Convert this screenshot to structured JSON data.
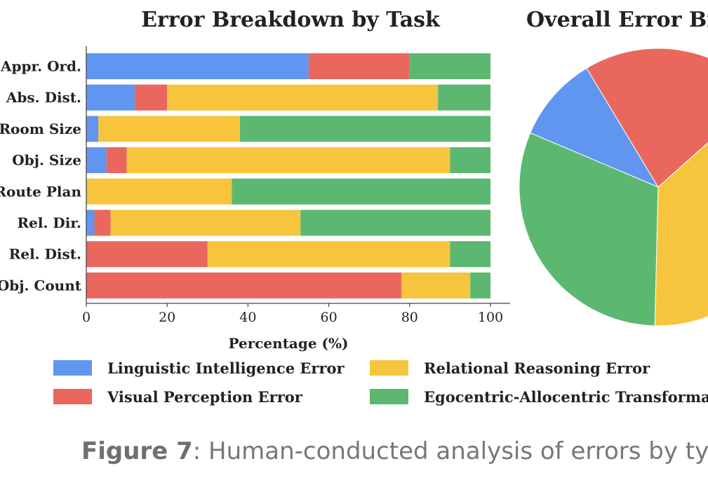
{
  "colors": {
    "linguistic": "#6196f0",
    "visual": "#e9675c",
    "relational": "#f6c53d",
    "egocentric": "#5cb871"
  },
  "chart_data": [
    {
      "type": "bar",
      "orientation": "horizontal-stacked",
      "title": "Error Breakdown by Task",
      "xlabel": "Percentage (%)",
      "xlim": [
        0,
        100
      ],
      "xticks": [
        "0",
        "20",
        "40",
        "60",
        "80",
        "100"
      ],
      "categories": [
        "Appr. Ord.",
        "Abs. Dist.",
        "Room Size",
        "Obj. Size",
        "Route Plan",
        "Rel. Dir.",
        "Rel. Dist.",
        "Obj. Count"
      ],
      "series": [
        {
          "name": "Linguistic Intelligence Error",
          "color_key": "linguistic",
          "values": [
            55,
            12,
            3,
            5,
            0,
            2,
            0,
            0
          ]
        },
        {
          "name": "Visual Perception Error",
          "color_key": "visual",
          "values": [
            25,
            8,
            0,
            5,
            0,
            4,
            30,
            78
          ]
        },
        {
          "name": "Relational Reasoning Error",
          "color_key": "relational",
          "values": [
            0,
            67,
            35,
            80,
            36,
            47,
            60,
            17
          ]
        },
        {
          "name": "Egocentric-Allocentric Transformation Error",
          "color_key": "egocentric",
          "values": [
            20,
            13,
            62,
            10,
            64,
            47,
            10,
            5
          ]
        }
      ]
    },
    {
      "type": "pie",
      "title": "Overall Error Breakdown",
      "slices": [
        {
          "name": "Linguistic Intelligence Error",
          "color_key": "linguistic",
          "value": 10
        },
        {
          "name": "Visual Perception Error",
          "color_key": "visual",
          "value": 22
        },
        {
          "name": "Relational Reasoning Error",
          "color_key": "relational",
          "value": 37
        },
        {
          "name": "Egocentric-Allocentric Transformation Error",
          "color_key": "egocentric",
          "value": 31
        }
      ]
    }
  ],
  "legend": [
    {
      "label": "Linguistic Intelligence Error",
      "color_key": "linguistic"
    },
    {
      "label": "Relational Reasoning Error",
      "color_key": "relational"
    },
    {
      "label": "Visual Perception Error",
      "color_key": "visual"
    },
    {
      "label": "Egocentric-Allocentric Transformation Error",
      "color_key": "egocentric"
    }
  ],
  "caption": {
    "figure_label": "Figure 7",
    "text": ": Human-conducted analysis of errors by type."
  }
}
